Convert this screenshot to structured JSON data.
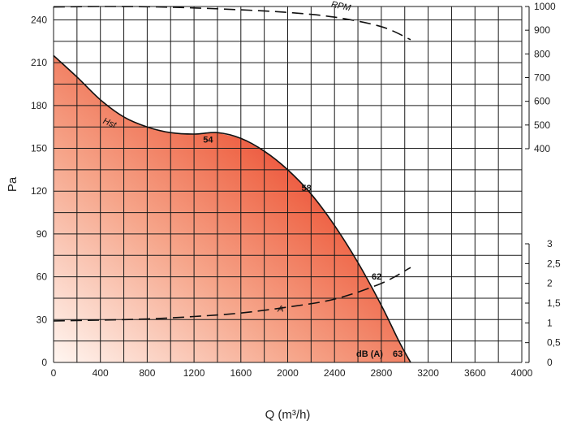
{
  "chart_data": {
    "type": "line",
    "xlabel": "Q (m³/h)",
    "ylabel": "Pa",
    "xlim": [
      0,
      4000
    ],
    "ylim": [
      0,
      240
    ],
    "x_ticks": [
      0,
      400,
      800,
      1200,
      1600,
      2000,
      2400,
      2800,
      3200,
      3600,
      4000
    ],
    "y_ticks": [
      0,
      30,
      60,
      90,
      120,
      150,
      180,
      210,
      240
    ],
    "rpm_axis": {
      "ticks": [
        400,
        500,
        600,
        700,
        800,
        900,
        1000
      ],
      "range": [
        400,
        1000
      ]
    },
    "current_axis": {
      "ticks": [
        "0",
        "0,5",
        "1",
        "1,5",
        "2",
        "2,5",
        "3"
      ],
      "values": [
        0,
        0.5,
        1,
        1.5,
        2,
        2.5,
        3
      ],
      "range": [
        0,
        3
      ]
    },
    "grid": true,
    "series": [
      {
        "name": "Hst",
        "axis": "Pa",
        "style": "solid-filled",
        "x": [
          0,
          200,
          400,
          600,
          800,
          1000,
          1200,
          1400,
          1600,
          1800,
          2000,
          2200,
          2400,
          2600,
          2800,
          2950,
          3050
        ],
        "y": [
          215,
          200,
          184,
          172,
          165,
          161,
          160,
          161,
          157,
          148,
          135,
          118,
          96,
          70,
          40,
          15,
          0
        ]
      },
      {
        "name": "RPM",
        "axis": "RPM",
        "style": "dashed",
        "x": [
          0,
          400,
          800,
          1200,
          1600,
          2000,
          2400,
          2800,
          3050
        ],
        "y": [
          998,
          1000,
          999,
          994,
          986,
          975,
          955,
          915,
          860
        ]
      },
      {
        "name": "A",
        "axis": "A",
        "style": "dashed",
        "x": [
          0,
          400,
          800,
          1200,
          1600,
          2000,
          2400,
          2800,
          3050
        ],
        "y": [
          1.05,
          1.07,
          1.1,
          1.16,
          1.25,
          1.4,
          1.6,
          2.0,
          2.4
        ]
      }
    ],
    "annotations": [
      {
        "text": "Hst",
        "x": 470,
        "y": 166,
        "rotate": 22,
        "type": "curve"
      },
      {
        "text": "RPM",
        "x": 2450,
        "y": 990,
        "rotate": 12,
        "type": "rpm"
      },
      {
        "text": "A",
        "x": 1940,
        "y": 1.28,
        "rotate": 0,
        "type": "amp"
      },
      {
        "text": "54",
        "x": 1320,
        "y": 154,
        "type": "db"
      },
      {
        "text": "58",
        "x": 2160,
        "y": 120,
        "type": "db"
      },
      {
        "text": "62",
        "x": 2760,
        "y": 58,
        "type": "db"
      },
      {
        "text": "dB (A)",
        "x": 2700,
        "y": 4,
        "type": "db"
      },
      {
        "text": "63",
        "x": 2940,
        "y": 4,
        "type": "db"
      }
    ],
    "colors": {
      "fill_hot": "#e8201e",
      "fill_cool": "#fff3ee",
      "line": "#111111",
      "grid": "#1a1a1a"
    }
  }
}
